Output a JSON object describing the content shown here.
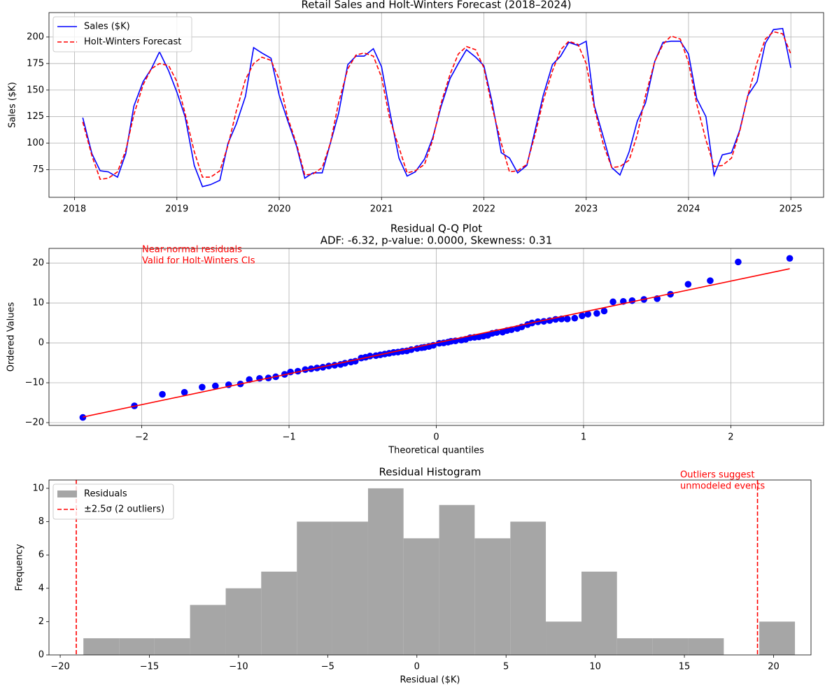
{
  "chart_data": [
    {
      "type": "line",
      "title": "Retail Sales and Holt-Winters Forecast (2018–2024)",
      "ylabel": "Sales ($K)",
      "grid": true,
      "legend": "upper left",
      "x": [
        2018.08,
        2018.17,
        2018.25,
        2018.33,
        2018.42,
        2018.5,
        2018.58,
        2018.67,
        2018.75,
        2018.83,
        2018.92,
        2019,
        2019.08,
        2019.17,
        2019.25,
        2019.33,
        2019.42,
        2019.5,
        2019.58,
        2019.67,
        2019.75,
        2019.83,
        2019.92,
        2020,
        2020.08,
        2020.17,
        2020.25,
        2020.33,
        2020.42,
        2020.5,
        2020.58,
        2020.67,
        2020.75,
        2020.83,
        2020.92,
        2021,
        2021.08,
        2021.17,
        2021.25,
        2021.33,
        2021.42,
        2021.5,
        2021.58,
        2021.67,
        2021.75,
        2021.83,
        2021.92,
        2022,
        2022.08,
        2022.17,
        2022.25,
        2022.33,
        2022.42,
        2022.5,
        2022.58,
        2022.67,
        2022.75,
        2022.83,
        2022.92,
        2023,
        2023.08,
        2023.17,
        2023.25,
        2023.33,
        2023.42,
        2023.5,
        2023.58,
        2023.67,
        2023.75,
        2023.83,
        2023.92,
        2024,
        2024.08,
        2024.17,
        2024.25,
        2024.33,
        2024.42,
        2024.5,
        2024.58,
        2024.67,
        2024.75,
        2024.83,
        2024.92,
        2025
      ],
      "series": [
        {
          "name": "Sales ($K)",
          "color": "#0000ff",
          "linestyle": "solid",
          "values": [
            124,
            90,
            74,
            73,
            68,
            90,
            135,
            158,
            170,
            186,
            168,
            148,
            125,
            79,
            59,
            61,
            65,
            100,
            118,
            144,
            190,
            185,
            180,
            145,
            122,
            97,
            67,
            72,
            72,
            100,
            128,
            174,
            182,
            182,
            189,
            172,
            130,
            86,
            69,
            73,
            85,
            105,
            134,
            161,
            175,
            188,
            181,
            173,
            139,
            91,
            86,
            72,
            79,
            112,
            145,
            174,
            182,
            195,
            192,
            196,
            135,
            105,
            77,
            70,
            92,
            121,
            138,
            177,
            195,
            196,
            196,
            184,
            142,
            125,
            70,
            89,
            91,
            112,
            145,
            158,
            194,
            207,
            208,
            171
          ]
        },
        {
          "name": "Holt-Winters Forecast",
          "color": "#ff0000",
          "linestyle": "dashed",
          "values": [
            120,
            88,
            66,
            67,
            73,
            93,
            127,
            155,
            170,
            175,
            173,
            158,
            128,
            92,
            68,
            68,
            74,
            98,
            130,
            160,
            175,
            181,
            178,
            160,
            125,
            99,
            70,
            71,
            77,
            100,
            138,
            170,
            183,
            185,
            182,
            162,
            123,
            96,
            72,
            74,
            80,
            103,
            137,
            165,
            184,
            191,
            188,
            171,
            134,
            100,
            73,
            74,
            80,
            108,
            140,
            168,
            188,
            196,
            193,
            175,
            133,
            98,
            77,
            78,
            84,
            108,
            145,
            177,
            193,
            201,
            198,
            176,
            137,
            103,
            78,
            79,
            86,
            111,
            145,
            176,
            198,
            205,
            203,
            184
          ]
        }
      ],
      "xlim": [
        2017.75,
        2025.32
      ],
      "xticks": [
        2018,
        2019,
        2020,
        2021,
        2022,
        2023,
        2024,
        2025
      ],
      "ylim": [
        49,
        223
      ],
      "yticks": [
        75,
        100,
        125,
        150,
        175,
        200
      ]
    },
    {
      "type": "scatter",
      "title": "Residual Q-Q Plot",
      "subtitle": "ADF: -6.32, p-value: 0.0000, Skewness: 0.31",
      "xlabel": "Theoretical quantiles",
      "ylabel": "Ordered Values",
      "grid": true,
      "color": "#0000ff",
      "annotation": [
        "Near-normal residuals",
        "Valid for Holt-Winters CIs"
      ],
      "annotation_color": "#ff0000",
      "x": [
        -2.4,
        -2.05,
        -1.86,
        -1.71,
        -1.59,
        -1.5,
        -1.41,
        -1.33,
        -1.27,
        -1.2,
        -1.14,
        -1.09,
        -1.03,
        -0.99,
        -0.94,
        -0.89,
        -0.85,
        -0.81,
        -0.77,
        -0.73,
        -0.69,
        -0.65,
        -0.62,
        -0.58,
        -0.55,
        -0.51,
        -0.48,
        -0.45,
        -0.41,
        -0.38,
        -0.35,
        -0.32,
        -0.29,
        -0.26,
        -0.23,
        -0.2,
        -0.17,
        -0.13,
        -0.1,
        -0.08,
        -0.05,
        -0.02,
        0.02,
        0.05,
        0.08,
        0.1,
        0.13,
        0.17,
        0.2,
        0.23,
        0.26,
        0.29,
        0.32,
        0.35,
        0.38,
        0.41,
        0.45,
        0.48,
        0.51,
        0.55,
        0.58,
        0.62,
        0.65,
        0.69,
        0.73,
        0.77,
        0.81,
        0.85,
        0.89,
        0.94,
        0.99,
        1.03,
        1.09,
        1.14,
        1.2,
        1.27,
        1.33,
        1.41,
        1.5,
        1.59,
        1.71,
        1.86,
        2.05,
        2.4
      ],
      "values": [
        -18.7,
        -15.8,
        -12.9,
        -12.4,
        -11.1,
        -10.8,
        -10.5,
        -10.3,
        -9.2,
        -8.9,
        -8.8,
        -8.5,
        -7.9,
        -7.3,
        -7.1,
        -6.7,
        -6.5,
        -6.3,
        -6.1,
        -5.8,
        -5.6,
        -5.4,
        -5.1,
        -4.8,
        -4.6,
        -3.8,
        -3.6,
        -3.3,
        -3.2,
        -3.0,
        -2.8,
        -2.6,
        -2.4,
        -2.3,
        -2.1,
        -2.0,
        -1.7,
        -1.4,
        -1.2,
        -1.1,
        -0.9,
        -0.6,
        -0.1,
        0.0,
        0.2,
        0.4,
        0.5,
        0.7,
        0.9,
        1.3,
        1.4,
        1.5,
        1.7,
        1.9,
        2.4,
        2.6,
        2.7,
        3.1,
        3.3,
        3.6,
        4.0,
        4.6,
        5.0,
        5.3,
        5.4,
        5.6,
        5.9,
        6.0,
        6.0,
        6.2,
        6.8,
        7.2,
        7.4,
        8.0,
        10.3,
        10.4,
        10.6,
        10.9,
        11.1,
        12.2,
        14.7,
        15.6,
        20.3,
        21.2
      ],
      "fit_line": {
        "color": "#ff0000",
        "x": [
          -2.4,
          2.4
        ],
        "values": [
          -18.6,
          18.6
        ]
      },
      "xlim": [
        -2.63,
        2.63
      ],
      "xticks": [
        {
          "value": -2,
          "label": "−2"
        },
        {
          "value": -1,
          "label": "−1"
        },
        0,
        1,
        2
      ],
      "ylim": [
        -20.7,
        23.7
      ],
      "yticks": [
        {
          "value": -20,
          "label": "−20"
        },
        {
          "value": -10,
          "label": "−10"
        },
        0,
        10,
        20
      ]
    },
    {
      "type": "histogram",
      "title": "Residual Histogram",
      "xlabel": "Residual ($K)",
      "ylabel": "Frequency",
      "grid": false,
      "legend": "upper left",
      "annotation": [
        "Outliers suggest",
        "unmodeled events"
      ],
      "annotation_color": "#ff0000",
      "series": [
        {
          "name": "Residuals",
          "color": "#a6a6a6",
          "bins": [
            -18.7,
            -16.7,
            -14.71,
            -12.72,
            -10.72,
            -8.73,
            -6.73,
            -4.74,
            -2.74,
            -0.75,
            1.25,
            3.24,
            5.24,
            7.23,
            9.23,
            11.22,
            13.22,
            15.21,
            17.21,
            19.2,
            21.2
          ],
          "values": [
            1,
            1,
            1,
            3,
            4,
            5,
            8,
            8,
            10,
            7,
            9,
            7,
            8,
            2,
            5,
            1,
            1,
            1,
            0,
            2
          ]
        }
      ],
      "vlines": {
        "name": "±2.5σ (2 outliers)",
        "color": "#ff0000",
        "linestyle": "dashed",
        "values": [
          -19.1,
          19.1
        ]
      },
      "xlim": [
        -20.63,
        22.1
      ],
      "xticks": [
        {
          "value": -20,
          "label": "−20"
        },
        {
          "value": -15,
          "label": "−15"
        },
        {
          "value": -10,
          "label": "−10"
        },
        {
          "value": -5,
          "label": "−5"
        },
        0,
        5,
        10,
        15,
        20
      ],
      "ylim": [
        0,
        10.5
      ],
      "yticks": [
        0,
        2,
        4,
        6,
        8,
        10
      ]
    }
  ]
}
